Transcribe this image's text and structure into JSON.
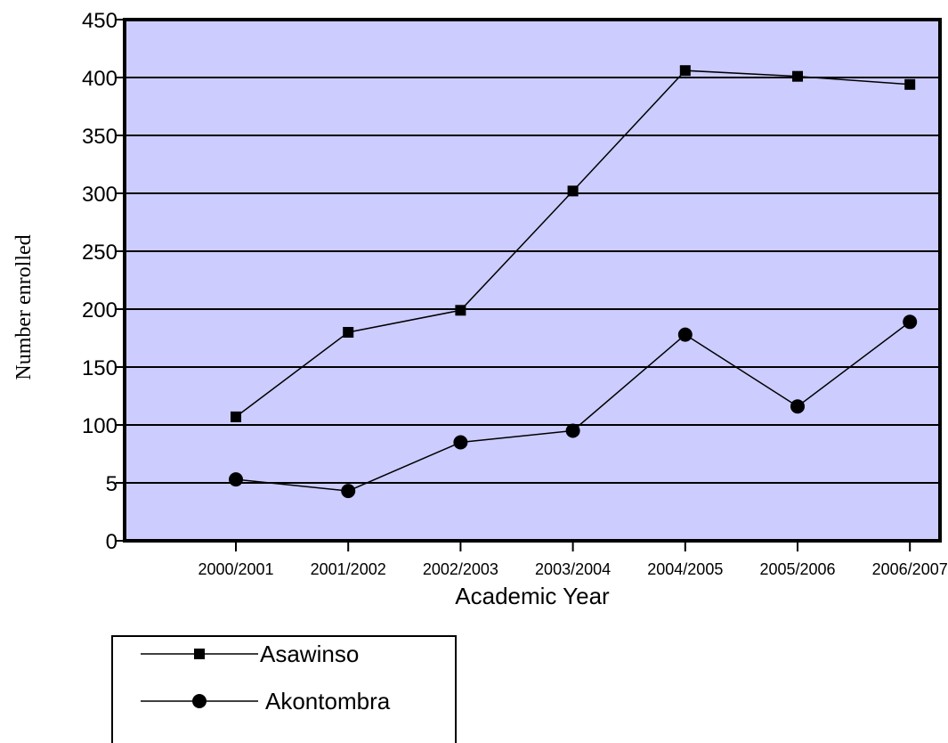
{
  "chart_data": {
    "type": "line",
    "title": "",
    "xlabel": "Academic Year",
    "ylabel": "Number enrolled",
    "categories": [
      "2000/2001",
      "2001/2002",
      "2002/2003",
      "2003/2004",
      "2004/2005",
      "2005/2006",
      "2006/2007"
    ],
    "y_ticks": [
      "0",
      "5",
      "100",
      "150",
      "200",
      "250",
      "300",
      "350",
      "400",
      "450"
    ],
    "ylim": [
      0,
      450
    ],
    "grid": true,
    "legend_position": "below",
    "plot_background": "#ccccff",
    "series": [
      {
        "name": "Asawinso",
        "marker": "square",
        "values": [
          107,
          180,
          199,
          302,
          406,
          401,
          394
        ]
      },
      {
        "name": "Akontombra",
        "marker": "circle",
        "values": [
          53,
          43,
          85,
          95,
          178,
          116,
          189
        ]
      }
    ]
  }
}
